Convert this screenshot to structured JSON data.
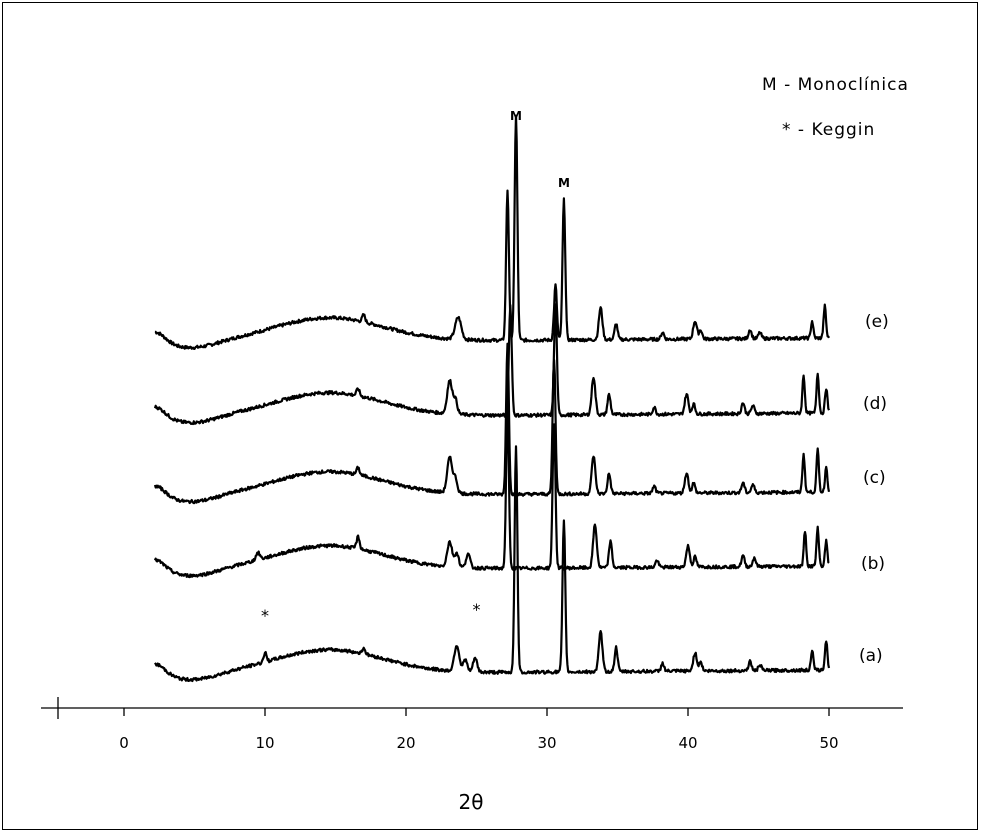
{
  "chart_data": {
    "type": "line",
    "title": "",
    "xlabel": "2θ",
    "ylabel": "",
    "xlim": [
      -5,
      55
    ],
    "x_ticks": [
      0,
      10,
      20,
      30,
      40,
      50
    ],
    "x_tick_labels": [
      "0",
      "10",
      "20",
      "30",
      "40",
      "50"
    ],
    "grid": false,
    "y_axis_visible": false,
    "legend": {
      "placement": "top-right",
      "entries": [
        "M - Monoclínica",
        "* - Keggin"
      ]
    },
    "annotations": [
      {
        "text": "M",
        "x": 27.8,
        "series": "(e)"
      },
      {
        "text": "M",
        "x": 31.2,
        "series": "(e)"
      },
      {
        "text": "*",
        "x": 10.0,
        "series": "(a)"
      },
      {
        "text": "*",
        "x": 25.0,
        "series": "(a)"
      }
    ],
    "series": [
      {
        "name": "(e)",
        "shift": 0.0,
        "baseline_amp": 1.0,
        "peaks": [
          [
            17.0,
            7,
            0.15
          ],
          [
            23.7,
            22,
            0.3
          ],
          [
            27.2,
            150,
            0.14
          ],
          [
            27.8,
            225,
            0.14
          ],
          [
            30.6,
            55,
            0.14
          ],
          [
            31.2,
            140,
            0.14
          ],
          [
            33.8,
            32,
            0.18
          ],
          [
            34.9,
            16,
            0.15
          ],
          [
            38.2,
            7,
            0.15
          ],
          [
            40.5,
            18,
            0.18
          ],
          [
            40.9,
            9,
            0.15
          ],
          [
            44.4,
            9,
            0.15
          ],
          [
            45.1,
            6,
            0.15
          ],
          [
            48.8,
            17,
            0.12
          ],
          [
            49.7,
            32,
            0.12
          ]
        ]
      },
      {
        "name": "(d)",
        "shift": -0.6,
        "baseline_amp": 1.0,
        "peaks": [
          [
            16.6,
            7,
            0.15
          ],
          [
            23.1,
            33,
            0.25
          ],
          [
            23.5,
            14,
            0.2
          ],
          [
            27.4,
            110,
            0.14
          ],
          [
            30.6,
            110,
            0.14
          ],
          [
            33.3,
            38,
            0.18
          ],
          [
            34.4,
            20,
            0.15
          ],
          [
            37.6,
            7,
            0.15
          ],
          [
            39.9,
            20,
            0.18
          ],
          [
            40.4,
            10,
            0.15
          ],
          [
            43.9,
            11,
            0.15
          ],
          [
            44.6,
            8,
            0.15
          ],
          [
            48.2,
            38,
            0.12
          ],
          [
            49.2,
            40,
            0.12
          ],
          [
            49.8,
            25,
            0.12
          ]
        ]
      },
      {
        "name": "(c)",
        "shift": -0.6,
        "baseline_amp": 1.0,
        "peaks": [
          [
            16.6,
            7,
            0.15
          ],
          [
            23.1,
            35,
            0.25
          ],
          [
            23.5,
            14,
            0.2
          ],
          [
            27.2,
            150,
            0.14
          ],
          [
            30.5,
            135,
            0.14
          ],
          [
            33.3,
            38,
            0.18
          ],
          [
            34.4,
            20,
            0.15
          ],
          [
            37.6,
            7,
            0.15
          ],
          [
            39.9,
            20,
            0.18
          ],
          [
            40.4,
            10,
            0.15
          ],
          [
            43.9,
            10,
            0.15
          ],
          [
            44.6,
            8,
            0.15
          ],
          [
            48.2,
            38,
            0.12
          ],
          [
            49.2,
            42,
            0.12
          ],
          [
            49.8,
            25,
            0.12
          ]
        ]
      },
      {
        "name": "(b)",
        "shift": -0.6,
        "baseline_amp": 1.0,
        "peaks": [
          [
            9.5,
            7,
            0.2
          ],
          [
            16.6,
            12,
            0.15
          ],
          [
            23.1,
            25,
            0.25
          ],
          [
            23.6,
            14,
            0.2
          ],
          [
            24.4,
            14,
            0.2
          ],
          [
            27.2,
            160,
            0.14
          ],
          [
            30.5,
            145,
            0.14
          ],
          [
            33.4,
            43,
            0.18
          ],
          [
            34.5,
            26,
            0.15
          ],
          [
            37.8,
            7,
            0.15
          ],
          [
            40.0,
            21,
            0.18
          ],
          [
            40.5,
            10,
            0.15
          ],
          [
            43.9,
            11,
            0.15
          ],
          [
            44.7,
            9,
            0.15
          ],
          [
            48.3,
            35,
            0.12
          ],
          [
            49.2,
            38,
            0.12
          ],
          [
            49.8,
            25,
            0.12
          ]
        ]
      },
      {
        "name": "(a)",
        "shift": 0.0,
        "baseline_amp": 1.0,
        "peaks": [
          [
            10.0,
            9,
            0.15
          ],
          [
            17.0,
            6,
            0.15
          ],
          [
            23.6,
            26,
            0.25
          ],
          [
            24.2,
            12,
            0.2
          ],
          [
            24.9,
            14,
            0.2
          ],
          [
            27.8,
            225,
            0.14
          ],
          [
            31.2,
            150,
            0.14
          ],
          [
            33.8,
            40,
            0.18
          ],
          [
            34.9,
            24,
            0.15
          ],
          [
            38.2,
            8,
            0.15
          ],
          [
            40.5,
            18,
            0.18
          ],
          [
            40.9,
            9,
            0.15
          ],
          [
            44.4,
            9,
            0.15
          ],
          [
            45.1,
            6,
            0.15
          ],
          [
            48.8,
            20,
            0.12
          ],
          [
            49.8,
            30,
            0.12
          ]
        ]
      }
    ]
  }
}
